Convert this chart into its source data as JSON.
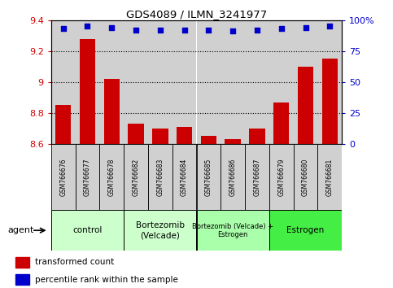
{
  "title": "GDS4089 / ILMN_3241977",
  "samples": [
    "GSM766676",
    "GSM766677",
    "GSM766678",
    "GSM766682",
    "GSM766683",
    "GSM766684",
    "GSM766685",
    "GSM766686",
    "GSM766687",
    "GSM766679",
    "GSM766680",
    "GSM766681"
  ],
  "red_values": [
    8.85,
    9.28,
    9.02,
    8.73,
    8.7,
    8.71,
    8.65,
    8.63,
    8.7,
    8.87,
    9.1,
    9.15
  ],
  "blue_values": [
    93,
    95,
    94,
    92,
    92,
    92,
    92,
    91,
    92,
    93,
    94,
    95
  ],
  "ylim": [
    8.6,
    9.4
  ],
  "yticks": [
    8.6,
    8.8,
    9.0,
    9.2,
    9.4
  ],
  "y2lim": [
    0,
    100
  ],
  "y2ticks": [
    0,
    25,
    50,
    75,
    100
  ],
  "y2ticklabels": [
    "0",
    "25",
    "50",
    "75",
    "100%"
  ],
  "group_ranges": [
    {
      "label": "control",
      "start": 0,
      "end": 2,
      "color": "#ccffcc"
    },
    {
      "label": "Bortezomib\n(Velcade)",
      "start": 3,
      "end": 5,
      "color": "#ccffcc"
    },
    {
      "label": "Bortezomib (Velcade) +\nEstrogen",
      "start": 6,
      "end": 8,
      "color": "#aaffaa"
    },
    {
      "label": "Estrogen",
      "start": 9,
      "end": 11,
      "color": "#44ee44"
    }
  ],
  "bar_color": "#cc0000",
  "dot_color": "#0000cc",
  "col_bg": "#d0d0d0",
  "agent_label": "agent",
  "legend_red": "transformed count",
  "legend_blue": "percentile rank within the sample"
}
